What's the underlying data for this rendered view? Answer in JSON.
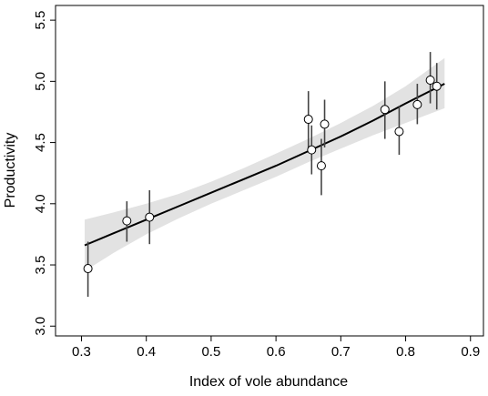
{
  "chart_data": {
    "type": "scatter",
    "title": "",
    "xlabel": "Index of vole abundance",
    "ylabel": "Productivity",
    "xlim": [
      0.26,
      0.92
    ],
    "ylim": [
      2.92,
      5.62
    ],
    "x_ticks": [
      "0.3",
      "0.4",
      "0.5",
      "0.6",
      "0.7",
      "0.8",
      "0.9"
    ],
    "y_ticks": [
      "3.0",
      "3.5",
      "4.0",
      "4.5",
      "5.0",
      "5.5"
    ],
    "grid": false,
    "points": [
      {
        "x": 0.31,
        "y": 3.47,
        "ylo": 3.24,
        "yhi": 3.69
      },
      {
        "x": 0.37,
        "y": 3.86,
        "ylo": 3.69,
        "yhi": 4.02
      },
      {
        "x": 0.405,
        "y": 3.89,
        "ylo": 3.67,
        "yhi": 4.11
      },
      {
        "x": 0.65,
        "y": 4.69,
        "ylo": 4.45,
        "yhi": 4.92
      },
      {
        "x": 0.655,
        "y": 4.44,
        "ylo": 4.24,
        "yhi": 4.64
      },
      {
        "x": 0.67,
        "y": 4.31,
        "ylo": 4.07,
        "yhi": 4.53
      },
      {
        "x": 0.675,
        "y": 4.65,
        "ylo": 4.46,
        "yhi": 4.85
      },
      {
        "x": 0.768,
        "y": 4.77,
        "ylo": 4.53,
        "yhi": 5.0
      },
      {
        "x": 0.79,
        "y": 4.59,
        "ylo": 4.4,
        "yhi": 4.8
      },
      {
        "x": 0.818,
        "y": 4.81,
        "ylo": 4.65,
        "yhi": 4.98
      },
      {
        "x": 0.838,
        "y": 5.01,
        "ylo": 4.82,
        "yhi": 5.24
      },
      {
        "x": 0.848,
        "y": 4.96,
        "ylo": 4.77,
        "yhi": 5.15
      }
    ],
    "fit_line": {
      "x": [
        0.305,
        0.35,
        0.4,
        0.45,
        0.5,
        0.55,
        0.6,
        0.65,
        0.7,
        0.75,
        0.8,
        0.86
      ],
      "y": [
        3.66,
        3.76,
        3.87,
        3.98,
        4.09,
        4.2,
        4.31,
        4.43,
        4.55,
        4.68,
        4.82,
        4.98
      ],
      "lower": [
        3.45,
        3.6,
        3.75,
        3.88,
        4.0,
        4.11,
        4.22,
        4.34,
        4.45,
        4.56,
        4.66,
        4.78
      ],
      "upper": [
        3.87,
        3.93,
        4.0,
        4.08,
        4.18,
        4.29,
        4.41,
        4.53,
        4.66,
        4.8,
        4.96,
        5.19
      ]
    },
    "colors": {
      "band": "#e2e2e2",
      "line": "#000000",
      "marker_fill": "#ffffff",
      "errorbar": "#444444"
    }
  }
}
